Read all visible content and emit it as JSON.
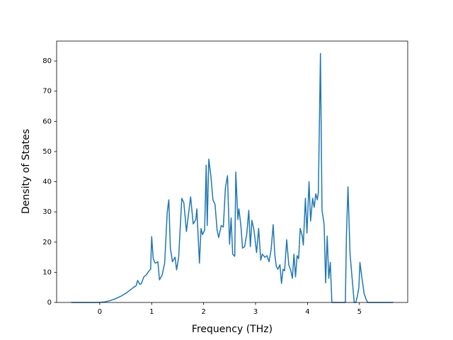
{
  "chart_data": {
    "type": "line",
    "xlabel": "Frequency (THz)",
    "ylabel": "Density of States",
    "color": "#1f77b4",
    "x": [
      -0.55,
      -0.3,
      0,
      0.1,
      0.2,
      0.3,
      0.4,
      0.5,
      0.6,
      0.65,
      0.7,
      0.73,
      0.77,
      0.8,
      0.85,
      0.9,
      0.95,
      0.98,
      1.0,
      1.03,
      1.07,
      1.12,
      1.15,
      1.2,
      1.25,
      1.3,
      1.33,
      1.36,
      1.4,
      1.45,
      1.48,
      1.52,
      1.58,
      1.62,
      1.67,
      1.7,
      1.75,
      1.8,
      1.85,
      1.87,
      1.92,
      1.95,
      1.98,
      2.02,
      2.05,
      2.07,
      2.1,
      2.14,
      2.18,
      2.22,
      2.26,
      2.29,
      2.34,
      2.38,
      2.42,
      2.46,
      2.5,
      2.53,
      2.56,
      2.6,
      2.62,
      2.66,
      2.68,
      2.72,
      2.75,
      2.79,
      2.83,
      2.87,
      2.9,
      2.93,
      2.97,
      3.02,
      3.06,
      3.1,
      3.13,
      3.18,
      3.22,
      3.26,
      3.3,
      3.34,
      3.37,
      3.4,
      3.43,
      3.47,
      3.5,
      3.53,
      3.56,
      3.6,
      3.64,
      3.68,
      3.71,
      3.74,
      3.77,
      3.8,
      3.83,
      3.86,
      3.9,
      3.92,
      3.96,
      3.99,
      4.03,
      4.06,
      4.1,
      4.13,
      4.16,
      4.19,
      4.21,
      4.25,
      4.28,
      4.32,
      4.35,
      4.38,
      4.41,
      4.44,
      4.47,
      4.5,
      4.6,
      4.7,
      4.73,
      4.75,
      4.78,
      4.82,
      4.85,
      4.9,
      4.93,
      4.96,
      4.99,
      5.01,
      5.05,
      5.09,
      5.13,
      5.16,
      5.3,
      5.65
    ],
    "values": [
      0,
      0,
      0,
      0.2,
      0.6,
      1.2,
      2,
      3,
      4.3,
      5,
      5.5,
      7.3,
      6,
      6.2,
      8.5,
      9.2,
      10.5,
      11,
      21.8,
      14.5,
      13,
      13.5,
      7.5,
      9,
      13,
      30,
      34,
      18,
      13.5,
      15,
      10.8,
      15,
      34.5,
      33,
      23.5,
      28,
      35,
      26,
      27.5,
      31,
      13,
      24.5,
      22.5,
      24,
      45.5,
      25.5,
      47.5,
      42,
      34,
      32.5,
      24,
      21.5,
      25.5,
      25,
      38,
      42,
      19.3,
      28,
      16,
      15.3,
      43.2,
      27.5,
      31,
      25,
      18,
      18.5,
      22.5,
      30.5,
      18.5,
      27.2,
      24,
      16.5,
      24.5,
      14,
      16,
      15,
      15.5,
      13.5,
      17.5,
      25.8,
      16,
      12,
      11,
      12.5,
      6.3,
      11,
      10.5,
      20.8,
      12.5,
      10.5,
      8,
      16,
      8.5,
      15.5,
      14.5,
      24.5,
      22,
      19,
      34.5,
      23,
      40,
      27,
      34.5,
      31.5,
      36,
      34,
      36.5,
      82.5,
      30.5,
      26,
      6.5,
      22,
      8,
      13.3,
      0,
      0,
      0,
      0,
      0,
      22,
      38.3,
      16,
      10,
      0,
      0,
      2,
      5,
      13.3,
      8,
      3,
      1,
      0,
      0,
      0
    ],
    "xlim": [
      -0.83,
      5.93
    ],
    "xticks": [
      0,
      1,
      2,
      3,
      4,
      5
    ],
    "ylim": [
      0,
      86.6
    ],
    "yticks": [
      0,
      10,
      20,
      30,
      40,
      50,
      60,
      70,
      80
    ]
  }
}
